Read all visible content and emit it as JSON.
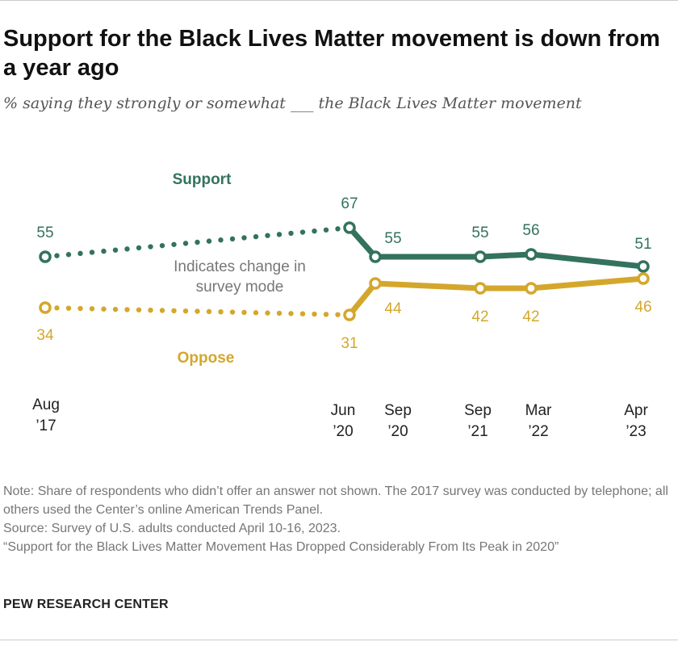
{
  "chart_data": {
    "type": "line",
    "title": "Support for the Black Lives Matter movement is down from a year ago",
    "subtitle": "% saying they strongly or somewhat ___ the Black Lives Matter movement",
    "x": [
      "2017-08",
      "2020-06",
      "2020-09",
      "2021-09",
      "2022-03",
      "2023-04"
    ],
    "tick_labels": [
      [
        "Aug",
        "’17"
      ],
      [
        "Jun",
        "’20"
      ],
      [
        "Sep",
        "’20"
      ],
      [
        "Sep",
        "’21"
      ],
      [
        "Mar",
        "’22"
      ],
      [
        "Apr",
        "’23"
      ]
    ],
    "series": [
      {
        "name": "Support",
        "color": "#33725f",
        "values": [
          55,
          67,
          55,
          55,
          56,
          51
        ]
      },
      {
        "name": "Oppose",
        "color": "#d4a72c",
        "values": [
          34,
          31,
          44,
          42,
          42,
          46
        ]
      }
    ],
    "annotation": [
      "Indicates change in",
      "survey mode"
    ],
    "mode_change_after_index": 1,
    "grid": false,
    "legend": "inline labels"
  },
  "notes": [
    "Note: Share of respondents who didn’t offer an answer not shown. The 2017 survey was conducted by telephone; all others used the Center’s online American Trends Panel.",
    "Source: Survey of U.S. adults conducted April 10-16, 2023.",
    "“Support for the Black Lives Matter Movement Has Dropped Considerably From Its Peak in 2020”"
  ],
  "brand": "PEW RESEARCH CENTER"
}
